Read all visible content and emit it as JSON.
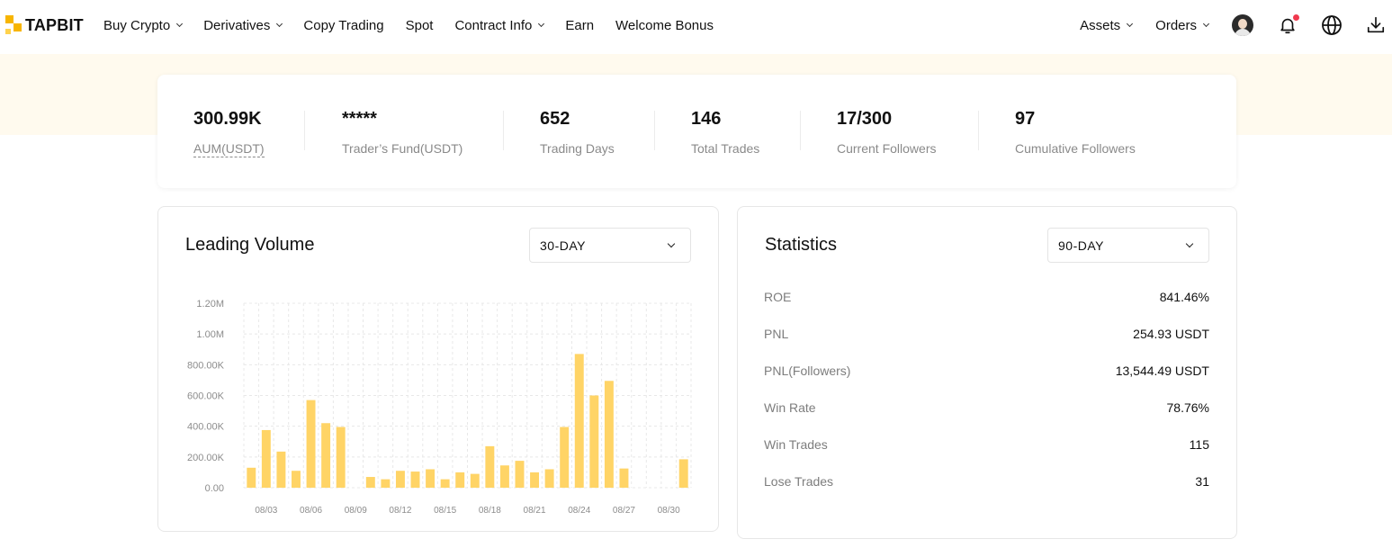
{
  "brand": {
    "name": "TAPBIT"
  },
  "nav": {
    "items": [
      {
        "label": "Buy Crypto",
        "has_caret": true
      },
      {
        "label": "Derivatives",
        "has_caret": true
      },
      {
        "label": "Copy Trading",
        "has_caret": false
      },
      {
        "label": "Spot",
        "has_caret": false
      },
      {
        "label": "Contract Info",
        "has_caret": true
      },
      {
        "label": "Earn",
        "has_caret": false
      },
      {
        "label": "Welcome Bonus",
        "has_caret": false
      }
    ],
    "right": {
      "assets": "Assets",
      "orders": "Orders"
    },
    "icons": [
      "avatar",
      "bell-icon",
      "globe-icon",
      "download-icon"
    ],
    "notification_dot_color": "#f0394e"
  },
  "summary": {
    "aum": {
      "value": "300.99K",
      "label": "AUM(USDT)"
    },
    "fund": {
      "value": "*****",
      "label": "Trader’s Fund(USDT)"
    },
    "days": {
      "value": "652",
      "label": "Trading Days"
    },
    "trades": {
      "value": "146",
      "label": "Total Trades"
    },
    "followers": {
      "value": "17/300",
      "label": "Current Followers"
    },
    "cumulative": {
      "value": "97",
      "label": "Cumulative Followers"
    }
  },
  "leading_volume": {
    "title": "Leading Volume",
    "period": "30-DAY"
  },
  "statistics": {
    "title": "Statistics",
    "period": "90-DAY",
    "rows": [
      {
        "key": "ROE",
        "value": "841.46%"
      },
      {
        "key": "PNL",
        "value": "254.93 USDT"
      },
      {
        "key": "PNL(Followers)",
        "value": "13,544.49 USDT"
      },
      {
        "key": "Win Rate",
        "value": "78.76%"
      },
      {
        "key": "Win Trades",
        "value": "115"
      },
      {
        "key": "Lose Trades",
        "value": "31"
      }
    ]
  },
  "chart_data": {
    "type": "bar",
    "bar_color": "#ffd466",
    "categories": [
      "08/02",
      "08/03",
      "08/04",
      "08/05",
      "08/06",
      "08/07",
      "08/08",
      "08/09",
      "08/10",
      "08/11",
      "08/12",
      "08/13",
      "08/14",
      "08/15",
      "08/16",
      "08/17",
      "08/18",
      "08/19",
      "08/20",
      "08/21",
      "08/22",
      "08/23",
      "08/24",
      "08/25",
      "08/26",
      "08/27",
      "08/28",
      "08/29",
      "08/30",
      "08/31"
    ],
    "tick_labels": [
      "08/03",
      "08/06",
      "08/09",
      "08/12",
      "08/15",
      "08/18",
      "08/21",
      "08/24",
      "08/27",
      "08/30"
    ],
    "values": [
      130000,
      375000,
      235000,
      110000,
      570000,
      420000,
      395000,
      0,
      70000,
      55000,
      110000,
      105000,
      120000,
      55000,
      100000,
      90000,
      270000,
      145000,
      175000,
      100000,
      120000,
      395000,
      870000,
      600000,
      695000,
      125000,
      0,
      0,
      0,
      185000
    ],
    "y_ticks": [
      "0.00",
      "200.00K",
      "400.00K",
      "600.00K",
      "800.00K",
      "1.00M",
      "1.20M"
    ],
    "ylim": [
      0,
      1200000
    ],
    "grid": true
  }
}
